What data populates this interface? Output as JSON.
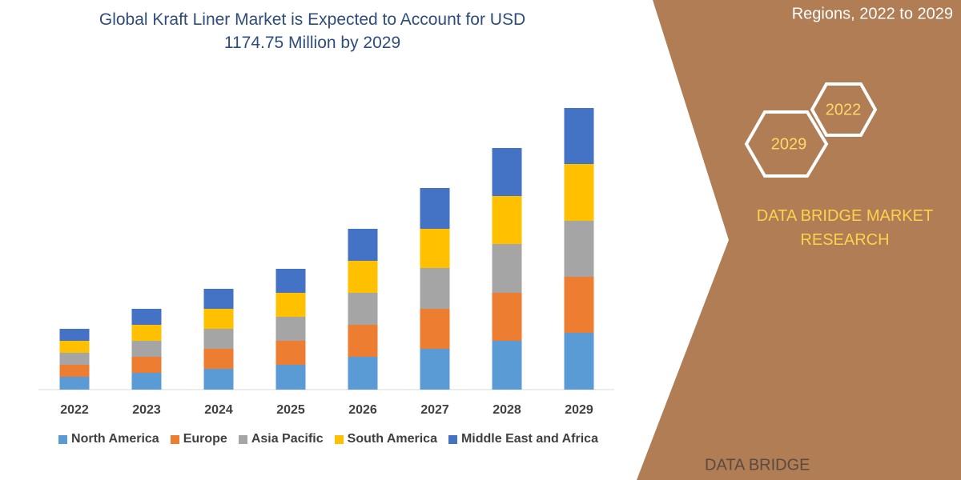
{
  "chart_data": {
    "type": "stacked_bar",
    "title": "Global Kraft Liner Market is Expected to Account for USD 1174.75 Million by 2029",
    "categories": [
      "2022",
      "2023",
      "2024",
      "2025",
      "2026",
      "2027",
      "2028",
      "2029"
    ],
    "series": [
      {
        "name": "North America",
        "color": "#5b9bd5",
        "values": [
          16,
          21,
          26,
          31,
          41,
          51,
          61,
          71
        ]
      },
      {
        "name": "Europe",
        "color": "#ed7d31",
        "values": [
          15,
          20,
          25,
          30,
          40,
          50,
          60,
          70
        ]
      },
      {
        "name": "Asia Pacific",
        "color": "#a5a5a5",
        "values": [
          15,
          20,
          25,
          30,
          40,
          51,
          61,
          70
        ]
      },
      {
        "name": "South America",
        "color": "#ffc000",
        "values": [
          15,
          20,
          25,
          30,
          40,
          49,
          60,
          71
        ]
      },
      {
        "name": "Middle East and Africa",
        "color": "#4472c4",
        "values": [
          15,
          20,
          25,
          30,
          40,
          51,
          60,
          70
        ]
      }
    ]
  },
  "panel": {
    "subtitle": "Regions, 2022 to 2029",
    "hex_labels": [
      "2022",
      "2029"
    ],
    "brand": "DATA BRIDGE MARKET RESEARCH",
    "logo": "DATA BRIDGE"
  }
}
